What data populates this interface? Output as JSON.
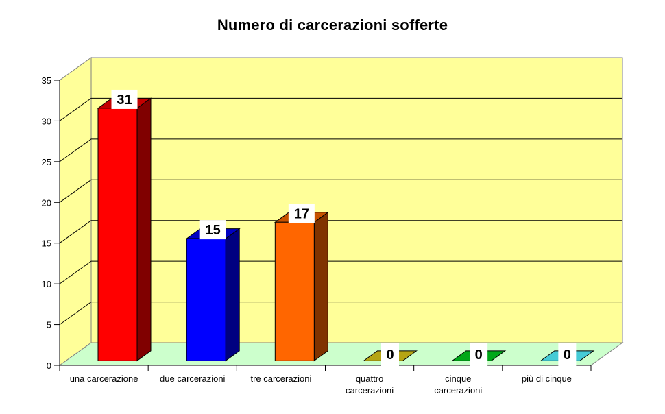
{
  "chart_data": {
    "type": "bar",
    "style": "3d-column",
    "title": "Numero di carcerazioni sofferte",
    "xlabel": "",
    "ylabel": "",
    "categories": [
      "una carcerazione",
      "due carcerazioni",
      "tre carcerazioni",
      "quattro carcerazioni",
      "cinque carcerazioni",
      "più di cinque"
    ],
    "values": [
      31,
      15,
      17,
      0,
      0,
      0
    ],
    "data_labels": [
      "31",
      "15",
      "17",
      "0",
      "0",
      "0"
    ],
    "ylim": [
      0,
      35
    ],
    "ytick_interval": 5,
    "yticks": [
      "0",
      "5",
      "10",
      "15",
      "20",
      "25",
      "30",
      "35"
    ],
    "grid": true,
    "legend": "none",
    "bar_colors": [
      {
        "front": "#FF0000",
        "side": "#800000",
        "top": "#C40000"
      },
      {
        "front": "#0000FF",
        "side": "#000080",
        "top": "#0000C4"
      },
      {
        "front": "#FF6600",
        "side": "#803300",
        "top": "#C75200"
      },
      {
        "front": "#999900",
        "side": "#666600",
        "top": "#B5A513"
      },
      {
        "front": "#009900",
        "side": "#006600",
        "top": "#00A819"
      },
      {
        "front": "#33CCCC",
        "side": "#1A8C99",
        "top": "#45CBD6"
      }
    ],
    "colors": {
      "background": "#FFFFFF",
      "wall": "#FFFF99",
      "floor": "#CCFFCC",
      "wall_border": "#808080",
      "gridline": "#000000",
      "axis": "#000000",
      "bar_border": "#000000",
      "label_bg": "#FFFFFF",
      "text": "#000000"
    }
  }
}
